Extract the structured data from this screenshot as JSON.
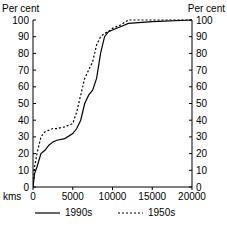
{
  "chart_data": {
    "type": "line",
    "y_label": "Per cent",
    "y2_label": "Per cent",
    "x_label": "kms",
    "x": [
      0,
      200,
      500,
      1000,
      1500,
      2000,
      2500,
      3000,
      4000,
      5000,
      5500,
      6000,
      6500,
      7000,
      7500,
      8000,
      8500,
      9000,
      9500,
      10000,
      11000,
      12000,
      15000,
      20000
    ],
    "series": [
      {
        "name": "1990s",
        "color": "#000000",
        "line_style": "solid",
        "values": [
          0,
          8,
          12,
          20,
          22,
          25,
          27,
          28,
          29,
          32,
          35,
          40,
          50,
          55,
          58,
          65,
          80,
          90,
          93,
          94,
          96,
          98,
          99,
          100
        ]
      },
      {
        "name": "1950s",
        "color": "#000000",
        "line_style": "dotted",
        "values": [
          0,
          12,
          20,
          30,
          33,
          34,
          35,
          35,
          36,
          38,
          45,
          55,
          65,
          70,
          75,
          85,
          90,
          92,
          93,
          95,
          97,
          100,
          100,
          100
        ]
      }
    ],
    "xlim": [
      0,
      20000
    ],
    "xticks": [
      0,
      5000,
      10000,
      15000,
      20000
    ],
    "ylim": [
      0,
      100
    ],
    "yticks": [
      0,
      10,
      20,
      30,
      40,
      50,
      60,
      70,
      80,
      90,
      100
    ],
    "y2lim": [
      0,
      100
    ],
    "y2ticks": [
      0,
      10,
      20,
      30,
      40,
      50,
      60,
      70,
      80,
      90,
      100
    ],
    "legend": "bottom"
  }
}
